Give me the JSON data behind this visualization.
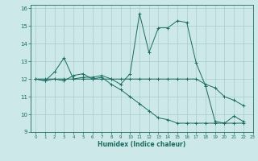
{
  "title": "",
  "xlabel": "Humidex (Indice chaleur)",
  "bg_color": "#cce8e8",
  "line_color": "#1a6b60",
  "grid_color": "#aacccc",
  "xlim": [
    -0.5,
    23
  ],
  "ylim": [
    9,
    16.2
  ],
  "yticks": [
    9,
    10,
    11,
    12,
    13,
    14,
    15,
    16
  ],
  "xticks": [
    0,
    1,
    2,
    3,
    4,
    5,
    6,
    7,
    8,
    9,
    10,
    11,
    12,
    13,
    14,
    15,
    16,
    17,
    18,
    19,
    20,
    21,
    22,
    23
  ],
  "series": [
    [
      12.0,
      11.9,
      12.4,
      13.2,
      12.0,
      12.1,
      12.1,
      12.2,
      12.0,
      11.7,
      12.3,
      15.7,
      13.5,
      14.9,
      14.9,
      15.3,
      15.2,
      12.9,
      11.6,
      9.6,
      9.5,
      9.9,
      9.6
    ],
    [
      12.0,
      12.0,
      12.0,
      12.0,
      12.0,
      12.0,
      12.0,
      12.0,
      12.0,
      12.0,
      12.0,
      12.0,
      12.0,
      12.0,
      12.0,
      12.0,
      12.0,
      12.0,
      11.7,
      11.5,
      11.0,
      10.8,
      10.5
    ],
    [
      12.0,
      11.9,
      12.0,
      11.9,
      12.2,
      12.3,
      12.0,
      12.1,
      11.7,
      11.4,
      11.0,
      10.6,
      10.2,
      9.8,
      9.7,
      9.5,
      9.5,
      9.5,
      9.5,
      9.5,
      9.5,
      9.5,
      9.5
    ]
  ],
  "figsize": [
    3.2,
    2.0
  ],
  "dpi": 100
}
